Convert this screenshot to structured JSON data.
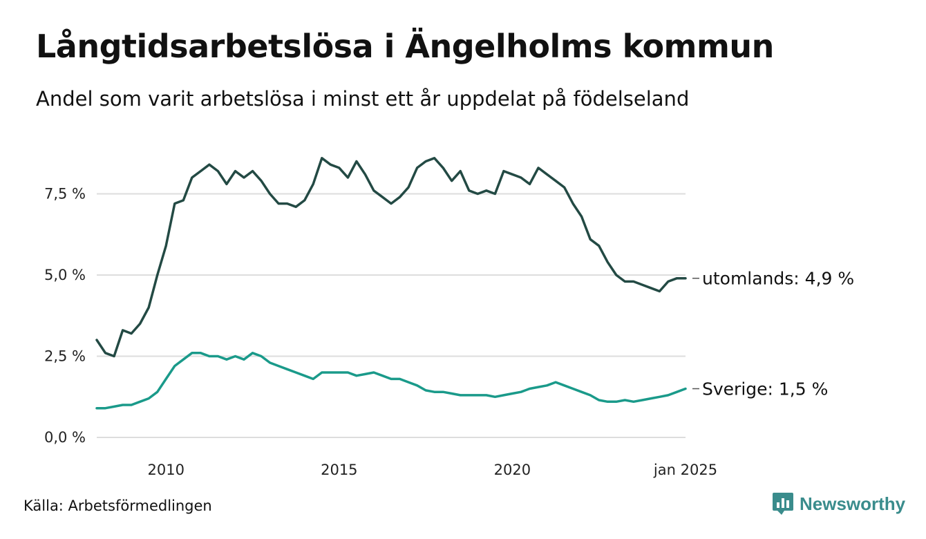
{
  "title": "Långtidsarbetslösa i Ängelholms kommun",
  "subtitle": "Andel som varit arbetslösa i minst ett år uppdelat på födelseland",
  "source": "Källa: Arbetsförmedlingen",
  "brand": "Newsworthy",
  "brand_icon": "newsworthy-logo-icon",
  "colors": {
    "utomlands": "#234a44",
    "sverige": "#1a9a8a",
    "grid": "#dddddd",
    "brand": "#3a8c8c"
  },
  "chart_data": {
    "type": "line",
    "title": "Långtidsarbetslösa i Ängelholms kommun",
    "subtitle": "Andel som varit arbetslösa i minst ett år uppdelat på födelseland",
    "xlabel": "",
    "ylabel": "",
    "ylim": [
      0,
      9
    ],
    "xlim": [
      "2008-01",
      "2025-01"
    ],
    "y_ticks": [
      0,
      2.5,
      5,
      7.5
    ],
    "y_tick_labels": [
      "0,0 %",
      "2,5 %",
      "5,0 %",
      "7,5 %"
    ],
    "x_ticks": [
      "2010-01",
      "2015-01",
      "2020-01",
      "2025-01"
    ],
    "x_tick_labels": [
      "2010",
      "2015",
      "2020",
      "jan 2025"
    ],
    "grid": "horizontal",
    "series": [
      {
        "name": "utomlands",
        "end_label": "utomlands: 4,9 %",
        "x": [
          "2008-01",
          "2008-04",
          "2008-07",
          "2008-10",
          "2009-01",
          "2009-04",
          "2009-07",
          "2009-10",
          "2010-01",
          "2010-04",
          "2010-07",
          "2010-10",
          "2011-01",
          "2011-04",
          "2011-07",
          "2011-10",
          "2012-01",
          "2012-04",
          "2012-07",
          "2012-10",
          "2013-01",
          "2013-04",
          "2013-07",
          "2013-10",
          "2014-01",
          "2014-04",
          "2014-07",
          "2014-10",
          "2015-01",
          "2015-04",
          "2015-07",
          "2015-10",
          "2016-01",
          "2016-04",
          "2016-07",
          "2016-10",
          "2017-01",
          "2017-04",
          "2017-07",
          "2017-10",
          "2018-01",
          "2018-04",
          "2018-07",
          "2018-10",
          "2019-01",
          "2019-04",
          "2019-07",
          "2019-10",
          "2020-01",
          "2020-04",
          "2020-07",
          "2020-10",
          "2021-01",
          "2021-04",
          "2021-07",
          "2021-10",
          "2022-01",
          "2022-04",
          "2022-07",
          "2022-10",
          "2023-01",
          "2023-04",
          "2023-07",
          "2023-10",
          "2024-01",
          "2024-04",
          "2024-07",
          "2024-10",
          "2025-01"
        ],
        "values": [
          3.0,
          2.6,
          2.5,
          3.3,
          3.2,
          3.5,
          4.0,
          5.0,
          5.9,
          7.2,
          7.3,
          8.0,
          8.2,
          8.4,
          8.2,
          7.8,
          8.2,
          8.0,
          8.2,
          7.9,
          7.5,
          7.2,
          7.2,
          7.1,
          7.3,
          7.8,
          8.6,
          8.4,
          8.3,
          8.0,
          8.5,
          8.1,
          7.6,
          7.4,
          7.2,
          7.4,
          7.7,
          8.3,
          8.5,
          8.6,
          8.3,
          7.9,
          8.2,
          7.6,
          7.5,
          7.6,
          7.5,
          8.2,
          8.1,
          8.0,
          7.8,
          8.3,
          8.1,
          7.9,
          7.7,
          7.2,
          6.8,
          6.1,
          5.9,
          5.4,
          5.0,
          4.8,
          4.8,
          4.7,
          4.6,
          4.5,
          4.8,
          4.9,
          4.9
        ]
      },
      {
        "name": "Sverige",
        "end_label": "Sverige: 1,5 %",
        "x": [
          "2008-01",
          "2008-04",
          "2008-07",
          "2008-10",
          "2009-01",
          "2009-04",
          "2009-07",
          "2009-10",
          "2010-01",
          "2010-04",
          "2010-07",
          "2010-10",
          "2011-01",
          "2011-04",
          "2011-07",
          "2011-10",
          "2012-01",
          "2012-04",
          "2012-07",
          "2012-10",
          "2013-01",
          "2013-04",
          "2013-07",
          "2013-10",
          "2014-01",
          "2014-04",
          "2014-07",
          "2014-10",
          "2015-01",
          "2015-04",
          "2015-07",
          "2015-10",
          "2016-01",
          "2016-04",
          "2016-07",
          "2016-10",
          "2017-01",
          "2017-04",
          "2017-07",
          "2017-10",
          "2018-01",
          "2018-04",
          "2018-07",
          "2018-10",
          "2019-01",
          "2019-04",
          "2019-07",
          "2019-10",
          "2020-01",
          "2020-04",
          "2020-07",
          "2020-10",
          "2021-01",
          "2021-04",
          "2021-07",
          "2021-10",
          "2022-01",
          "2022-04",
          "2022-07",
          "2022-10",
          "2023-01",
          "2023-04",
          "2023-07",
          "2023-10",
          "2024-01",
          "2024-04",
          "2024-07",
          "2024-10",
          "2025-01"
        ],
        "values": [
          0.9,
          0.9,
          0.95,
          1.0,
          1.0,
          1.1,
          1.2,
          1.4,
          1.8,
          2.2,
          2.4,
          2.6,
          2.6,
          2.5,
          2.5,
          2.4,
          2.5,
          2.4,
          2.6,
          2.5,
          2.3,
          2.2,
          2.1,
          2.0,
          1.9,
          1.8,
          2.0,
          2.0,
          2.0,
          2.0,
          1.9,
          1.95,
          2.0,
          1.9,
          1.8,
          1.8,
          1.7,
          1.6,
          1.45,
          1.4,
          1.4,
          1.35,
          1.3,
          1.3,
          1.3,
          1.3,
          1.25,
          1.3,
          1.35,
          1.4,
          1.5,
          1.55,
          1.6,
          1.7,
          1.6,
          1.5,
          1.4,
          1.3,
          1.15,
          1.1,
          1.1,
          1.15,
          1.1,
          1.15,
          1.2,
          1.25,
          1.3,
          1.4,
          1.5
        ]
      }
    ]
  }
}
